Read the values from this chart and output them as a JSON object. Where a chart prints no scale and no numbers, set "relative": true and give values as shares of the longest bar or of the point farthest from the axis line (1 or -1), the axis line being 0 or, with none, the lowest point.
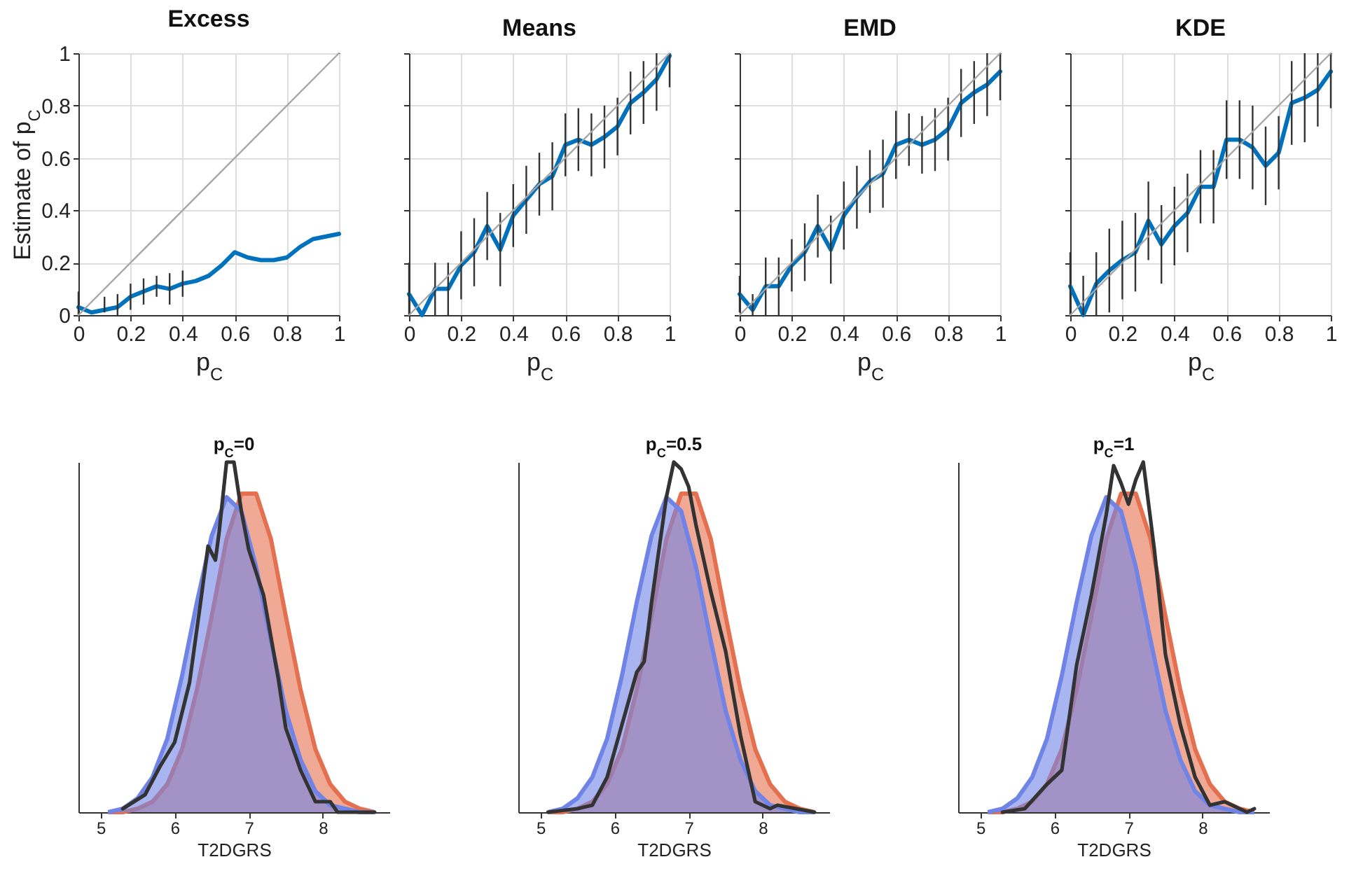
{
  "chart_data": [
    {
      "type": "line",
      "title": "Excess",
      "xlabel": "p$_{C}$",
      "ylabel": "Estimate of p$_{C}$",
      "x": [
        0,
        0.05,
        0.1,
        0.15,
        0.2,
        0.25,
        0.3,
        0.35,
        0.4,
        0.45,
        0.5,
        0.55,
        0.6,
        0.65,
        0.7,
        0.75,
        0.8,
        0.85,
        0.9,
        0.95,
        1
      ],
      "xlim": [
        0,
        1
      ],
      "ylim": [
        0,
        1
      ],
      "xticks": [
        0,
        0.2,
        0.4,
        0.6,
        0.8,
        1
      ],
      "yticks": [
        0,
        0.2,
        0.4,
        0.6,
        0.8,
        1
      ],
      "grid": true,
      "series": [
        {
          "color": "#0072bd",
          "values": [
            0.03,
            0.01,
            0.02,
            0.03,
            0.07,
            0.09,
            0.11,
            0.1,
            0.12,
            0.13,
            0.15,
            0.19,
            0.24,
            0.22,
            0.21,
            0.21,
            0.22,
            0.26,
            0.29,
            0.3,
            0.31
          ],
          "errors": [
            [
              0,
              0.09
            ],
            null,
            [
              0.01,
              0.07
            ],
            [
              0,
              0.08
            ],
            0.05,
            0.05,
            0.04,
            0.06,
            0.05,
            null,
            null,
            null,
            null,
            null,
            null,
            null,
            null,
            null,
            null,
            null,
            null
          ]
        },
        {
          "type": "line",
          "color": "#a6a6a6",
          "x": [
            0,
            1
          ],
          "values": [
            0,
            1
          ]
        }
      ]
    },
    {
      "type": "line",
      "title": "Means",
      "xlabel": "p$_{C}$",
      "x": [
        0,
        0.05,
        0.1,
        0.15,
        0.2,
        0.25,
        0.3,
        0.35,
        0.4,
        0.45,
        0.5,
        0.55,
        0.6,
        0.65,
        0.7,
        0.75,
        0.8,
        0.85,
        0.9,
        0.95,
        1
      ],
      "xlim": [
        0,
        1
      ],
      "ylim": [
        0,
        1
      ],
      "xticks": [
        0,
        0.2,
        0.4,
        0.6,
        0.8,
        1
      ],
      "yticks": [
        0,
        0.2,
        0.4,
        0.6,
        0.8,
        1
      ],
      "grid": true,
      "tick_labels": "x",
      "series": [
        {
          "color": "#0072bd",
          "values": [
            0.08,
            0,
            0.1,
            0.1,
            0.19,
            0.24,
            0.34,
            0.25,
            0.38,
            0.44,
            0.5,
            0.53,
            0.65,
            0.67,
            0.65,
            0.68,
            0.72,
            0.81,
            0.85,
            0.9,
            0.99
          ],
          "errors": [
            [
              0,
              0.2
            ],
            null,
            0.1,
            0.1,
            0.13,
            0.13,
            0.13,
            0.14,
            0.12,
            0.13,
            0.12,
            0.13,
            0.12,
            0.12,
            0.12,
            0.12,
            0.11,
            0.12,
            0.12,
            [
              0.78,
              1
            ],
            [
              0.87,
              1
            ]
          ]
        },
        {
          "type": "line",
          "color": "#a6a6a6",
          "x": [
            0,
            1
          ],
          "values": [
            0,
            1
          ]
        }
      ]
    },
    {
      "type": "line",
      "title": "EMD",
      "xlabel": "p$_{C}$",
      "x": [
        0,
        0.05,
        0.1,
        0.15,
        0.2,
        0.25,
        0.3,
        0.35,
        0.4,
        0.45,
        0.5,
        0.55,
        0.6,
        0.65,
        0.7,
        0.75,
        0.8,
        0.85,
        0.9,
        0.95,
        1
      ],
      "xlim": [
        0,
        1
      ],
      "ylim": [
        0,
        1
      ],
      "xticks": [
        0,
        0.2,
        0.4,
        0.6,
        0.8,
        1
      ],
      "yticks": [
        0,
        0.2,
        0.4,
        0.6,
        0.8,
        1
      ],
      "grid": true,
      "tick_labels": "x",
      "series": [
        {
          "color": "#0072bd",
          "values": [
            0.08,
            0.02,
            0.11,
            0.11,
            0.19,
            0.24,
            0.34,
            0.25,
            0.38,
            0.45,
            0.51,
            0.54,
            0.65,
            0.67,
            0.65,
            0.67,
            0.71,
            0.81,
            0.85,
            0.88,
            0.93
          ],
          "errors": [
            0.07,
            [
              0,
              0.08
            ],
            0.11,
            0.11,
            0.1,
            0.11,
            0.12,
            0.13,
            0.13,
            0.12,
            0.12,
            0.13,
            0.13,
            0.1,
            0.11,
            0.12,
            0.12,
            0.13,
            0.12,
            0.12,
            [
              0.82,
              1
            ]
          ]
        },
        {
          "type": "line",
          "color": "#a6a6a6",
          "x": [
            0,
            1
          ],
          "values": [
            0,
            1
          ]
        }
      ]
    },
    {
      "type": "line",
      "title": "KDE",
      "xlabel": "p$_{C}$",
      "x": [
        0,
        0.05,
        0.1,
        0.15,
        0.2,
        0.25,
        0.3,
        0.35,
        0.4,
        0.45,
        0.5,
        0.55,
        0.6,
        0.65,
        0.7,
        0.75,
        0.8,
        0.85,
        0.9,
        0.95,
        1
      ],
      "xlim": [
        0,
        1
      ],
      "ylim": [
        0,
        1
      ],
      "xticks": [
        0,
        0.2,
        0.4,
        0.6,
        0.8,
        1
      ],
      "yticks": [
        0,
        0.2,
        0.4,
        0.6,
        0.8,
        1
      ],
      "grid": true,
      "tick_labels": "x",
      "series": [
        {
          "color": "#0072bd",
          "values": [
            0.11,
            0,
            0.12,
            0.17,
            0.21,
            0.24,
            0.36,
            0.27,
            0.34,
            0.39,
            0.49,
            0.49,
            0.67,
            0.67,
            0.64,
            0.57,
            0.62,
            0.81,
            0.83,
            0.86,
            0.93
          ],
          "errors": [
            [
              0,
              0.24
            ],
            [
              0,
              0.15
            ],
            0.12,
            0.16,
            0.15,
            0.15,
            0.15,
            0.15,
            0.15,
            0.15,
            0.14,
            0.14,
            0.15,
            0.15,
            0.16,
            0.15,
            0.14,
            0.16,
            0.17,
            [
              0.72,
              1
            ],
            [
              0.79,
              1
            ]
          ]
        },
        {
          "type": "line",
          "color": "#a6a6a6",
          "x": [
            0,
            1
          ],
          "values": [
            0,
            1
          ]
        }
      ]
    },
    {
      "type": "area",
      "title": "p$_{C}$=0",
      "xlabel": "T2DGRS",
      "relative": true,
      "x": [
        5.1,
        5.3,
        5.5,
        5.7,
        5.9,
        6.1,
        6.3,
        6.5,
        6.7,
        6.9,
        7.1,
        7.3,
        7.5,
        7.7,
        7.9,
        8.1,
        8.3,
        8.5,
        8.7
      ],
      "xlim": [
        4.7,
        8.9
      ],
      "xticks": [
        5,
        6,
        7,
        8
      ],
      "tick_labels": "x",
      "series": [
        {
          "color": "#e5704f",
          "values": [
            0,
            0,
            0.01,
            0.03,
            0.08,
            0.18,
            0.35,
            0.56,
            0.78,
            0.91,
            0.91,
            0.78,
            0.56,
            0.35,
            0.18,
            0.08,
            0.03,
            0.01,
            0
          ]
        },
        {
          "color": "#6f84e6",
          "values": [
            0,
            0.01,
            0.04,
            0.1,
            0.21,
            0.39,
            0.6,
            0.79,
            0.9,
            0.86,
            0.7,
            0.49,
            0.29,
            0.15,
            0.06,
            0.02,
            0.01,
            0,
            0
          ]
        },
        {
          "type": "line",
          "color": "#333333",
          "x": [
            5.3,
            5.6,
            5.8,
            6.0,
            6.2,
            6.35,
            6.45,
            6.55,
            6.6,
            6.7,
            6.8,
            6.9,
            7.0,
            7.2,
            7.4,
            7.5,
            7.7,
            7.9,
            8.1,
            8.2,
            8.7
          ],
          "values": [
            0.01,
            0.05,
            0.13,
            0.2,
            0.37,
            0.6,
            0.76,
            0.72,
            0.8,
            1,
            1,
            0.86,
            0.75,
            0.62,
            0.38,
            0.24,
            0.12,
            0.03,
            0.03,
            0,
            0
          ]
        }
      ]
    },
    {
      "type": "area",
      "title": "p$_{C}$=0.5",
      "xlabel": "T2DGRS",
      "relative": true,
      "x": [
        5.1,
        5.3,
        5.5,
        5.7,
        5.9,
        6.1,
        6.3,
        6.5,
        6.7,
        6.9,
        7.1,
        7.3,
        7.5,
        7.7,
        7.9,
        8.1,
        8.3,
        8.5,
        8.7
      ],
      "xlim": [
        4.7,
        8.9
      ],
      "xticks": [
        5,
        6,
        7,
        8
      ],
      "tick_labels": "x",
      "series": [
        {
          "color": "#e5704f",
          "values": [
            0,
            0,
            0.01,
            0.03,
            0.08,
            0.18,
            0.35,
            0.56,
            0.78,
            0.91,
            0.91,
            0.78,
            0.56,
            0.35,
            0.18,
            0.08,
            0.03,
            0.01,
            0
          ]
        },
        {
          "color": "#6f84e6",
          "values": [
            0,
            0.01,
            0.04,
            0.1,
            0.21,
            0.39,
            0.6,
            0.79,
            0.9,
            0.86,
            0.7,
            0.49,
            0.29,
            0.15,
            0.06,
            0.02,
            0.01,
            0,
            0
          ]
        },
        {
          "type": "line",
          "color": "#333333",
          "x": [
            5.1,
            5.5,
            5.7,
            5.9,
            6.1,
            6.3,
            6.4,
            6.5,
            6.7,
            6.8,
            6.9,
            7.0,
            7.1,
            7.3,
            7.5,
            7.7,
            7.9,
            8.1,
            8.2,
            8.7
          ],
          "values": [
            0,
            0.01,
            0.02,
            0.1,
            0.25,
            0.4,
            0.43,
            0.6,
            0.9,
            1,
            0.98,
            0.93,
            0.82,
            0.63,
            0.46,
            0.22,
            0.03,
            0.01,
            0.02,
            0
          ]
        }
      ]
    },
    {
      "type": "area",
      "title": "p$_{C}$=1",
      "xlabel": "T2DGRS",
      "relative": true,
      "x": [
        5.1,
        5.3,
        5.5,
        5.7,
        5.9,
        6.1,
        6.3,
        6.5,
        6.7,
        6.9,
        7.1,
        7.3,
        7.5,
        7.7,
        7.9,
        8.1,
        8.3,
        8.5,
        8.7
      ],
      "xlim": [
        4.7,
        8.9
      ],
      "xticks": [
        5,
        6,
        7,
        8
      ],
      "tick_labels": "x",
      "series": [
        {
          "color": "#e5704f",
          "values": [
            0,
            0,
            0.01,
            0.03,
            0.08,
            0.18,
            0.35,
            0.56,
            0.78,
            0.91,
            0.91,
            0.78,
            0.56,
            0.35,
            0.18,
            0.08,
            0.03,
            0.01,
            0
          ]
        },
        {
          "color": "#6f84e6",
          "values": [
            0,
            0.01,
            0.04,
            0.1,
            0.21,
            0.39,
            0.6,
            0.79,
            0.9,
            0.86,
            0.7,
            0.49,
            0.29,
            0.15,
            0.06,
            0.02,
            0.01,
            0,
            0
          ]
        },
        {
          "type": "line",
          "color": "#333333",
          "x": [
            5.3,
            5.6,
            5.9,
            6.1,
            6.3,
            6.5,
            6.7,
            6.8,
            6.9,
            7.0,
            7.1,
            7.2,
            7.35,
            7.5,
            7.7,
            7.9,
            8.1,
            8.3,
            8.6,
            8.7
          ],
          "values": [
            0,
            0.01,
            0.08,
            0.12,
            0.42,
            0.62,
            0.85,
            0.99,
            0.94,
            0.88,
            0.95,
            1,
            0.75,
            0.45,
            0.25,
            0.1,
            0.02,
            0.03,
            0,
            0.01
          ]
        }
      ]
    }
  ]
}
